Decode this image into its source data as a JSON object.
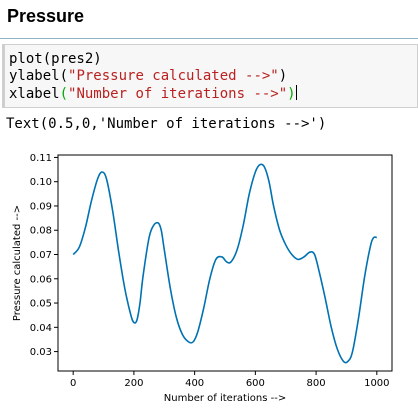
{
  "section": {
    "title": "Pressure"
  },
  "cell": {
    "line1": "plot(pres2)",
    "line2_fn": "ylabel(",
    "line2_str": "\"Pressure calculated -->\"",
    "line2_close": ")",
    "line3_fn": "xlabel",
    "line3_open": "(",
    "line3_str": "\"Number of iterations -->\"",
    "line3_close": ")"
  },
  "output": {
    "text": "Text(0.5,0,'Number of iterations -->')"
  },
  "colors": {
    "line": "#0072b2",
    "string": "#ba2121",
    "bracket_match": "#00aa00"
  },
  "chart_data": {
    "type": "line",
    "xlabel": "Number of iterations -->",
    "ylabel": "Pressure calculated -->",
    "xlim": [
      -50,
      1050
    ],
    "ylim": [
      0.022,
      0.111
    ],
    "xticks": [
      0,
      200,
      400,
      600,
      800,
      1000
    ],
    "yticks": [
      0.03,
      0.04,
      0.05,
      0.06,
      0.07,
      0.08,
      0.09,
      0.1,
      0.11
    ],
    "ytick_labels": [
      "0.03",
      "0.04",
      "0.05",
      "0.06",
      "0.07",
      "0.08",
      "0.09",
      "0.10",
      "0.11"
    ],
    "grid": false,
    "series": [
      {
        "x": [
          0,
          20,
          40,
          60,
          80,
          95,
          110,
          130,
          150,
          170,
          190,
          200,
          210,
          220,
          230,
          250,
          265,
          280,
          290,
          300,
          320,
          340,
          360,
          380,
          395,
          410,
          430,
          450,
          470,
          490,
          505,
          520,
          540,
          560,
          580,
          600,
          615,
          630,
          645,
          660,
          680,
          700,
          720,
          740,
          760,
          780,
          795,
          810,
          830,
          850,
          870,
          890,
          905,
          920,
          940,
          960,
          980,
          990,
          1000
        ],
        "y": [
          0.07,
          0.073,
          0.081,
          0.092,
          0.101,
          0.104,
          0.101,
          0.088,
          0.071,
          0.056,
          0.045,
          0.042,
          0.043,
          0.05,
          0.061,
          0.077,
          0.082,
          0.083,
          0.08,
          0.072,
          0.056,
          0.044,
          0.037,
          0.034,
          0.034,
          0.038,
          0.048,
          0.06,
          0.068,
          0.069,
          0.067,
          0.067,
          0.072,
          0.082,
          0.095,
          0.104,
          0.107,
          0.106,
          0.1,
          0.09,
          0.08,
          0.074,
          0.07,
          0.068,
          0.069,
          0.071,
          0.07,
          0.063,
          0.052,
          0.04,
          0.031,
          0.026,
          0.026,
          0.03,
          0.044,
          0.061,
          0.074,
          0.077,
          0.077
        ]
      }
    ]
  }
}
